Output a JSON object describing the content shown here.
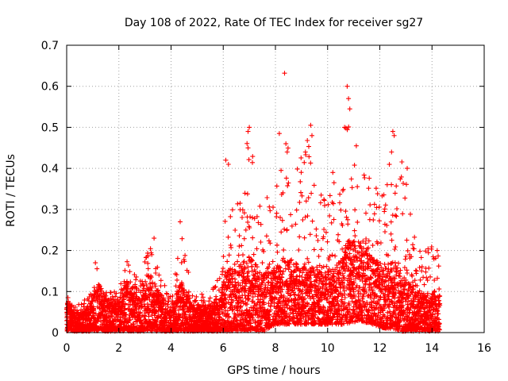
{
  "chart_data": {
    "type": "scatter",
    "title": "Day 108 of 2022, Rate Of TEC Index for receiver sg27",
    "xlabel": "GPS time / hours",
    "ylabel": "ROTI / TECUs",
    "xlim": [
      0,
      16
    ],
    "ylim": [
      0,
      0.7
    ],
    "x_ticks": [
      "0",
      "2",
      "4",
      "6",
      "8",
      "10",
      "12",
      "14",
      "16"
    ],
    "y_ticks": [
      "0",
      "0.1",
      "0.2",
      "0.3",
      "0.4",
      "0.5",
      "0.6",
      "0.7"
    ],
    "grid": true,
    "marker": "+",
    "series": [
      {
        "name": "ROTI",
        "color": "#ff0000",
        "x_range_hours": [
          0,
          14.3
        ],
        "peak_points": [
          {
            "x": 8.35,
            "y": 0.632
          },
          {
            "x": 10.75,
            "y": 0.6
          },
          {
            "x": 10.8,
            "y": 0.57
          },
          {
            "x": 10.85,
            "y": 0.545
          },
          {
            "x": 9.35,
            "y": 0.505
          },
          {
            "x": 10.65,
            "y": 0.5
          },
          {
            "x": 7.0,
            "y": 0.5
          },
          {
            "x": 6.95,
            "y": 0.49
          },
          {
            "x": 12.5,
            "y": 0.49
          },
          {
            "x": 12.55,
            "y": 0.48
          },
          {
            "x": 8.15,
            "y": 0.485
          },
          {
            "x": 9.4,
            "y": 0.48
          },
          {
            "x": 8.4,
            "y": 0.46
          },
          {
            "x": 11.1,
            "y": 0.455
          },
          {
            "x": 6.95,
            "y": 0.45
          },
          {
            "x": 12.45,
            "y": 0.44
          },
          {
            "x": 8.45,
            "y": 0.44
          },
          {
            "x": 9.15,
            "y": 0.44
          },
          {
            "x": 6.1,
            "y": 0.42
          },
          {
            "x": 6.2,
            "y": 0.41
          },
          {
            "x": 13.05,
            "y": 0.4
          },
          {
            "x": 10.2,
            "y": 0.39
          },
          {
            "x": 4.35,
            "y": 0.27
          },
          {
            "x": 3.35,
            "y": 0.23
          },
          {
            "x": 14.2,
            "y": 0.2
          },
          {
            "x": 1.1,
            "y": 0.17
          },
          {
            "x": 0.05,
            "y": 0.085
          }
        ],
        "envelope": [
          {
            "x": 0.0,
            "low": 0.0,
            "typ": 0.05,
            "high": 0.085
          },
          {
            "x": 0.5,
            "low": 0.0,
            "typ": 0.03,
            "high": 0.07
          },
          {
            "x": 1.0,
            "low": 0.0,
            "typ": 0.05,
            "high": 0.1
          },
          {
            "x": 1.2,
            "low": 0.0,
            "typ": 0.08,
            "high": 0.17
          },
          {
            "x": 1.5,
            "low": 0.0,
            "typ": 0.05,
            "high": 0.1
          },
          {
            "x": 2.0,
            "low": 0.0,
            "typ": 0.05,
            "high": 0.1
          },
          {
            "x": 2.3,
            "low": 0.0,
            "typ": 0.08,
            "high": 0.19
          },
          {
            "x": 2.8,
            "low": 0.0,
            "typ": 0.07,
            "high": 0.15
          },
          {
            "x": 3.2,
            "low": 0.0,
            "typ": 0.09,
            "high": 0.23
          },
          {
            "x": 3.6,
            "low": 0.0,
            "typ": 0.06,
            "high": 0.14
          },
          {
            "x": 4.0,
            "low": 0.0,
            "typ": 0.04,
            "high": 0.09
          },
          {
            "x": 4.4,
            "low": 0.0,
            "typ": 0.08,
            "high": 0.27
          },
          {
            "x": 4.8,
            "low": 0.0,
            "typ": 0.04,
            "high": 0.1
          },
          {
            "x": 5.5,
            "low": 0.0,
            "typ": 0.04,
            "high": 0.09
          },
          {
            "x": 5.9,
            "low": 0.0,
            "typ": 0.06,
            "high": 0.17
          },
          {
            "x": 6.2,
            "low": 0.0,
            "typ": 0.1,
            "high": 0.41
          },
          {
            "x": 6.6,
            "low": 0.0,
            "typ": 0.1,
            "high": 0.34
          },
          {
            "x": 7.0,
            "low": 0.0,
            "typ": 0.12,
            "high": 0.5
          },
          {
            "x": 7.5,
            "low": 0.0,
            "typ": 0.09,
            "high": 0.33
          },
          {
            "x": 8.0,
            "low": 0.02,
            "typ": 0.1,
            "high": 0.34
          },
          {
            "x": 8.4,
            "low": 0.02,
            "typ": 0.12,
            "high": 0.48
          },
          {
            "x": 8.9,
            "low": 0.02,
            "typ": 0.1,
            "high": 0.44
          },
          {
            "x": 9.3,
            "low": 0.02,
            "typ": 0.11,
            "high": 0.49
          },
          {
            "x": 9.8,
            "low": 0.02,
            "typ": 0.09,
            "high": 0.33
          },
          {
            "x": 10.3,
            "low": 0.02,
            "typ": 0.1,
            "high": 0.39
          },
          {
            "x": 10.8,
            "low": 0.02,
            "typ": 0.14,
            "high": 0.6
          },
          {
            "x": 11.2,
            "low": 0.03,
            "typ": 0.14,
            "high": 0.45
          },
          {
            "x": 11.7,
            "low": 0.02,
            "typ": 0.12,
            "high": 0.38
          },
          {
            "x": 12.2,
            "low": 0.01,
            "typ": 0.1,
            "high": 0.37
          },
          {
            "x": 12.5,
            "low": 0.01,
            "typ": 0.11,
            "high": 0.49
          },
          {
            "x": 13.0,
            "low": 0.0,
            "typ": 0.08,
            "high": 0.4
          },
          {
            "x": 13.5,
            "low": 0.0,
            "typ": 0.06,
            "high": 0.2
          },
          {
            "x": 14.0,
            "low": 0.0,
            "typ": 0.06,
            "high": 0.22
          },
          {
            "x": 14.3,
            "low": 0.0,
            "typ": 0.07,
            "high": 0.2
          }
        ]
      }
    ]
  }
}
